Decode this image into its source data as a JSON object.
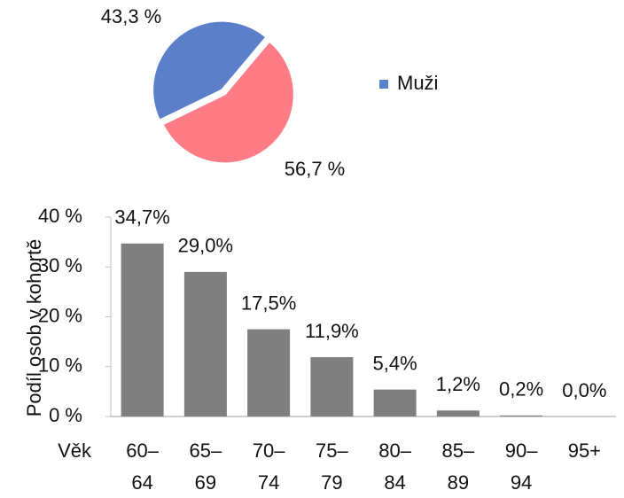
{
  "chart_data": [
    {
      "type": "pie",
      "categories": [
        "Muži",
        null
      ],
      "values": [
        43.3,
        56.7
      ],
      "value_labels": [
        "43,3 %",
        "56,7 %"
      ],
      "colors": [
        "#5b7fc8",
        "#ff7b86"
      ],
      "legend": "right"
    },
    {
      "type": "bar",
      "x_label": "Věk",
      "y_label": "Podíl osob v kohortě",
      "categories": [
        "60–64",
        "65–69",
        "70–74",
        "75–79",
        "80–84",
        "85–89",
        "90–94",
        "95+"
      ],
      "values": [
        34.7,
        29.0,
        17.5,
        11.9,
        5.4,
        1.2,
        0.2,
        0.0
      ],
      "value_labels": [
        "34,7%",
        "29,0%",
        "17,5%",
        "11,9%",
        "5,4%",
        "1,2%",
        "0,2%",
        "0,0%"
      ],
      "color": "#7f7f7f",
      "ylim": [
        0,
        40
      ],
      "yticks": [
        {
          "value": 0,
          "label": "0 %"
        },
        {
          "value": 10,
          "label": "10 %"
        },
        {
          "value": 20,
          "label": "20 %"
        },
        {
          "value": 30,
          "label": "30 %"
        },
        {
          "value": 40,
          "label": "40 %"
        }
      ]
    }
  ]
}
